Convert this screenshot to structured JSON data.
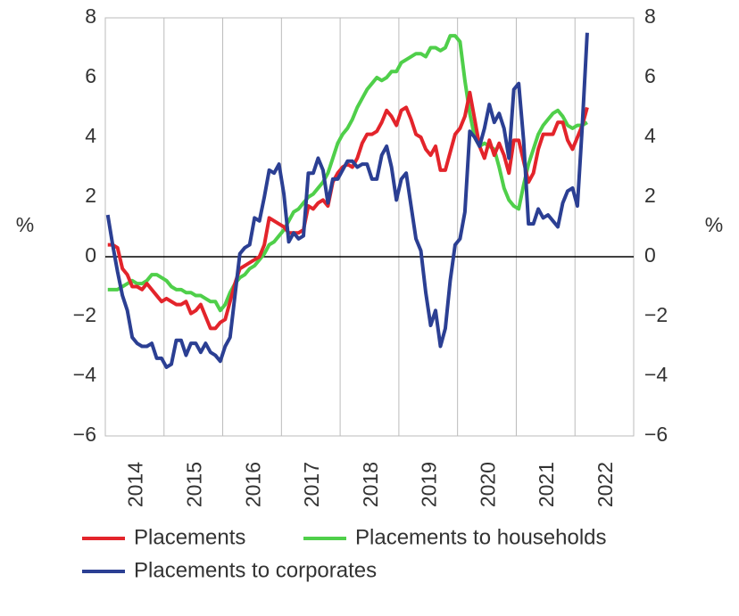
{
  "chart_data": {
    "type": "line",
    "y_label": "%",
    "y2_label": "%",
    "categories": [
      null,
      null,
      null,
      null,
      null,
      null,
      "2014",
      null,
      null,
      null,
      null,
      null,
      null,
      null,
      null,
      null,
      null,
      null,
      "2015",
      null,
      null,
      null,
      null,
      null,
      null,
      null,
      null,
      null,
      null,
      null,
      "2016",
      null,
      null,
      null,
      null,
      null,
      null,
      null,
      null,
      null,
      null,
      null,
      "2017",
      null,
      null,
      null,
      null,
      null,
      null,
      null,
      null,
      null,
      null,
      null,
      "2018",
      null,
      null,
      null,
      null,
      null,
      null,
      null,
      null,
      null,
      null,
      null,
      "2019",
      null,
      null,
      null,
      null,
      null,
      null,
      null,
      null,
      null,
      null,
      null,
      "2020",
      null,
      null,
      null,
      null,
      null,
      null,
      null,
      null,
      null,
      null,
      null,
      "2021",
      null,
      null,
      null,
      null,
      null,
      null,
      null,
      null,
      null,
      null,
      null,
      "2022",
      null,
      null,
      null,
      null,
      null
    ],
    "series": [
      {
        "name": "Placements",
        "color": "#e3242b",
        "values": [
          0.4,
          0.4,
          0.3,
          -0.4,
          -0.6,
          -1.0,
          -1.0,
          -1.1,
          -0.9,
          -1.1,
          -1.3,
          -1.5,
          -1.4,
          -1.5,
          -1.6,
          -1.6,
          -1.5,
          -1.9,
          -1.8,
          -1.6,
          -2.0,
          -2.4,
          -2.4,
          -2.2,
          -2.1,
          -1.5,
          -0.9,
          -0.4,
          -0.3,
          -0.2,
          -0.1,
          0.0,
          0.4,
          1.3,
          1.2,
          1.1,
          1.0,
          0.8,
          0.8,
          0.8,
          0.9,
          1.7,
          1.6,
          1.8,
          1.9,
          1.7,
          2.5,
          2.8,
          3.0,
          3.1,
          3.0,
          3.3,
          3.8,
          4.1,
          4.1,
          4.2,
          4.5,
          4.9,
          4.7,
          4.4,
          4.9,
          5.0,
          4.6,
          4.1,
          4.0,
          3.6,
          3.4,
          3.7,
          2.9,
          2.9,
          3.5,
          4.1,
          4.3,
          4.7,
          5.5,
          4.6,
          3.7,
          3.3,
          3.9,
          3.4,
          3.8,
          3.4,
          2.8,
          3.9,
          3.9,
          3.2,
          2.5,
          2.8,
          3.6,
          4.1,
          4.1,
          4.1,
          4.5,
          4.5,
          3.9,
          3.6,
          4.0,
          4.4,
          5.0,
          null,
          null,
          null,
          null,
          null,
          null,
          null,
          null,
          null
        ]
      },
      {
        "name": "Placements to households",
        "color": "#4fcf4a",
        "values": [
          -1.1,
          -1.1,
          -1.1,
          -1.0,
          -0.9,
          -0.8,
          -0.9,
          -0.9,
          -0.8,
          -0.6,
          -0.6,
          -0.7,
          -0.8,
          -1.0,
          -1.1,
          -1.1,
          -1.2,
          -1.2,
          -1.3,
          -1.3,
          -1.4,
          -1.5,
          -1.5,
          -1.8,
          -1.6,
          -1.2,
          -0.9,
          -0.7,
          -0.6,
          -0.4,
          -0.3,
          -0.1,
          0.1,
          0.4,
          0.5,
          0.7,
          0.9,
          1.2,
          1.5,
          1.6,
          1.8,
          2.0,
          2.1,
          2.3,
          2.5,
          2.8,
          3.3,
          3.8,
          4.1,
          4.3,
          4.6,
          5.0,
          5.3,
          5.6,
          5.8,
          6.0,
          5.9,
          6.0,
          6.2,
          6.2,
          6.5,
          6.6,
          6.7,
          6.8,
          6.8,
          6.7,
          7.0,
          7.0,
          6.9,
          7.0,
          7.4,
          7.4,
          7.2,
          5.9,
          4.8,
          4.0,
          3.7,
          3.8,
          3.7,
          3.6,
          3.0,
          2.3,
          1.9,
          1.7,
          1.6,
          2.4,
          3.1,
          3.6,
          4.1,
          4.4,
          4.6,
          4.8,
          4.9,
          4.7,
          4.4,
          4.3,
          4.4,
          4.4,
          4.5,
          null,
          null,
          null,
          null,
          null,
          null,
          null,
          null,
          null
        ]
      },
      {
        "name": "Placements to corporates",
        "color": "#2b3f93",
        "values": [
          1.4,
          0.4,
          -0.5,
          -1.3,
          -1.8,
          -2.7,
          -2.9,
          -3.0,
          -3.0,
          -2.9,
          -3.4,
          -3.4,
          -3.7,
          -3.6,
          -2.8,
          -2.8,
          -3.3,
          -2.9,
          -2.9,
          -3.2,
          -2.9,
          -3.2,
          -3.3,
          -3.5,
          -3.0,
          -2.7,
          -1.3,
          0.1,
          0.3,
          0.4,
          1.3,
          1.2,
          2.0,
          2.9,
          2.8,
          3.1,
          2.1,
          0.5,
          0.8,
          0.6,
          0.7,
          2.8,
          2.8,
          3.3,
          2.9,
          1.8,
          2.6,
          2.6,
          2.9,
          3.2,
          3.2,
          3.0,
          3.1,
          3.1,
          2.6,
          2.6,
          3.4,
          3.7,
          3.0,
          1.9,
          2.6,
          2.8,
          1.7,
          0.6,
          0.2,
          -1.2,
          -2.3,
          -1.8,
          -3.0,
          -2.4,
          -0.8,
          0.4,
          0.6,
          1.5,
          4.2,
          4.0,
          3.7,
          4.3,
          5.1,
          4.5,
          4.8,
          4.3,
          3.3,
          5.6,
          5.8,
          3.9,
          1.1,
          1.1,
          1.6,
          1.3,
          1.4,
          1.2,
          1.0,
          1.8,
          2.2,
          2.3,
          1.7,
          4.4,
          7.5,
          null,
          null,
          null,
          null,
          null,
          null,
          null,
          null,
          null
        ]
      }
    ],
    "ylim": [
      -6,
      8
    ],
    "yticks": [
      {
        "value": -6,
        "label": "−6"
      },
      {
        "value": -4,
        "label": "−4"
      },
      {
        "value": -2,
        "label": "−2"
      },
      0,
      2,
      4,
      6,
      8
    ],
    "y2lim": [
      -6,
      8
    ],
    "y2ticks": [
      {
        "value": -6,
        "label": "−6"
      },
      {
        "value": -4,
        "label": "−4"
      },
      {
        "value": -2,
        "label": "−2"
      },
      0,
      2,
      4,
      6,
      8
    ]
  }
}
